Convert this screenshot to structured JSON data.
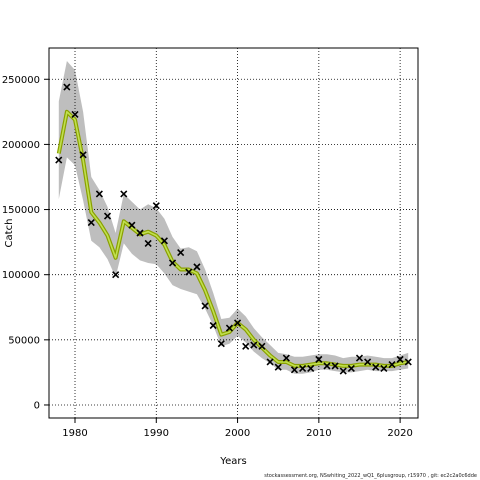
{
  "footer_text": "stockassessment.org, NSwhiting_2022_wQ1_6plusgroup, r15970 , git: ec2c2a0c6dde",
  "chart_data": {
    "type": "line",
    "title": "",
    "xlabel": "Years",
    "ylabel": "Catch",
    "xlim": [
      1976.8,
      2022.2
    ],
    "ylim": [
      -10000,
      274000
    ],
    "xticks": [
      1980,
      1990,
      2000,
      2010,
      2020
    ],
    "yticks": [
      0,
      50000,
      100000,
      150000,
      200000,
      250000
    ],
    "grid": true,
    "grid_style": "dotted",
    "colors": {
      "band": "#bebebe",
      "line_outer": "#8aa000",
      "line_inner": "#c0e050",
      "points": "#000000"
    },
    "years": [
      1978,
      1979,
      1980,
      1981,
      1982,
      1983,
      1984,
      1985,
      1986,
      1987,
      1988,
      1989,
      1990,
      1991,
      1992,
      1993,
      1994,
      1995,
      1996,
      1997,
      1998,
      1999,
      2000,
      2001,
      2002,
      2003,
      2004,
      2005,
      2006,
      2007,
      2008,
      2009,
      2010,
      2011,
      2012,
      2013,
      2014,
      2015,
      2016,
      2017,
      2018,
      2019,
      2020,
      2021
    ],
    "series": [
      {
        "name": "",
        "role": "estimate",
        "values": [
          193000,
          225000,
          219000,
          188000,
          148000,
          140000,
          130000,
          113000,
          141000,
          136000,
          131000,
          133000,
          130000,
          123000,
          110000,
          104000,
          104000,
          101000,
          88000,
          72000,
          54000,
          56000,
          63000,
          58000,
          50000,
          44000,
          38000,
          33000,
          33000,
          30000,
          30000,
          31000,
          32000,
          32000,
          31000,
          30000,
          30000,
          31000,
          31000,
          31000,
          30000,
          30000,
          32000,
          33000
        ]
      },
      {
        "name": "",
        "role": "lower",
        "values": [
          158000,
          190000,
          184000,
          157000,
          126000,
          121000,
          112000,
          98000,
          124000,
          116000,
          111000,
          109000,
          108000,
          101000,
          92000,
          89000,
          87000,
          85000,
          74000,
          61000,
          45000,
          47000,
          53000,
          48000,
          41000,
          36000,
          32000,
          27000,
          27000,
          24000,
          24000,
          25000,
          27000,
          27000,
          26000,
          25000,
          25000,
          26000,
          27000,
          26000,
          26000,
          26000,
          27000,
          28000
        ]
      },
      {
        "name": "",
        "role": "upper",
        "values": [
          233000,
          264000,
          257000,
          225000,
          175000,
          165000,
          152000,
          132000,
          162000,
          156000,
          150000,
          154000,
          151000,
          143000,
          129000,
          120000,
          121000,
          118000,
          104000,
          86000,
          66000,
          67000,
          74000,
          68000,
          59000,
          52000,
          46000,
          40000,
          39000,
          37000,
          37000,
          38000,
          39000,
          39000,
          38000,
          36000,
          37000,
          37000,
          38000,
          37000,
          36000,
          36000,
          38000,
          40000
        ]
      },
      {
        "name": "",
        "role": "observed",
        "values": [
          188000,
          244000,
          223000,
          192000,
          140000,
          162000,
          145000,
          100000,
          162000,
          138000,
          132000,
          124000,
          153000,
          126000,
          109000,
          117000,
          102000,
          106000,
          76000,
          61000,
          47000,
          59000,
          63000,
          45000,
          46000,
          45000,
          33000,
          29000,
          36000,
          27000,
          28000,
          28000,
          35000,
          30000,
          30000,
          26000,
          28000,
          36000,
          33000,
          29000,
          28000,
          31000,
          35000,
          33000
        ]
      }
    ]
  }
}
